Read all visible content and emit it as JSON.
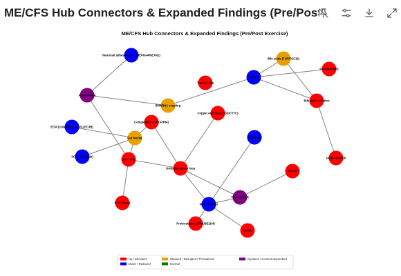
{
  "header": {
    "title": "ME/CFS Hub Connectors & Expanded Findings (Pre/Post Exer...",
    "toolbar_icons": [
      "pin-off-icon",
      "settings-sliders-icon",
      "download-icon",
      "expand-icon"
    ]
  },
  "diagram": {
    "title": "ME/CFS Hub Connectors & Expanded Findings (Pre/Post Exercise)",
    "colors": {
      "up": "#ff0000",
      "down": "#0000ff",
      "strained": "#e8a000",
      "normal": "#007a00",
      "dynamic": "#800080",
      "edge": "#808080"
    },
    "nodes": [
      {
        "id": "neuronal",
        "label": "Neuronal adhesion (CNTN/EPHA4/NEXN1)",
        "state": "down"
      },
      {
        "id": "bile_acids",
        "label": "Bile acids (FXR/FGF19)",
        "state": "strained"
      },
      {
        "id": "ppp",
        "label": "PPP (NADPH)",
        "state": "up"
      },
      {
        "id": "ampk",
        "label": "AMPK",
        "state": "down"
      },
      {
        "id": "tissue",
        "label": "Tissue hubs",
        "state": "up"
      },
      {
        "id": "adrenal",
        "label": "Adrenal/HPA",
        "state": "dynamic"
      },
      {
        "id": "bile_oxid",
        "label": "Bile acid oxidation",
        "state": "up"
      },
      {
        "id": "bh4",
        "label": "BH4/BH2 coupling",
        "state": "strained"
      },
      {
        "id": "copper",
        "label": "Copper enzymes (SOD/CYTC)",
        "state": "up"
      },
      {
        "id": "complement",
        "label": "Complement (C3/CFHR4)",
        "state": "up"
      },
      {
        "id": "ecm",
        "label": "ECM (COMP/COL6A1/CLEC3B)",
        "state": "down"
      },
      {
        "id": "gut",
        "label": "Gut barrier",
        "state": "strained"
      },
      {
        "id": "autophagy",
        "label": "Autophagy",
        "state": "down"
      },
      {
        "id": "scfa",
        "label": "SCFA (butyrate)",
        "state": "down"
      },
      {
        "id": "nat",
        "label": "NAT (P4)",
        "state": "up"
      },
      {
        "id": "glutamate",
        "label": "Glutamate/Gln",
        "state": "up"
      },
      {
        "id": "oxidative",
        "label": "Oxidative stress loop",
        "state": "up"
      },
      {
        "id": "hsp",
        "label": "HSP70",
        "state": "up"
      },
      {
        "id": "thymus",
        "label": "Thymus/TCR",
        "state": "dynamic"
      },
      {
        "id": "pyr",
        "label": "PYR kinase",
        "state": "up"
      },
      {
        "id": "mito",
        "label": "Mito complex",
        "state": "down"
      },
      {
        "id": "proteostasis",
        "label": "Proteostasis (UPP/UBE2D4)",
        "state": "up"
      },
      {
        "id": "ornith",
        "label": "Ornith",
        "state": "up"
      }
    ],
    "edges": [
      [
        "neuronal",
        "adrenal"
      ],
      [
        "adrenal",
        "bh4"
      ],
      [
        "adrenal",
        "nat"
      ],
      [
        "bh4",
        "ampk"
      ],
      [
        "ampk",
        "bile_acids"
      ],
      [
        "ampk",
        "ppp"
      ],
      [
        "ampk",
        "bile_oxid"
      ],
      [
        "bile_acids",
        "bile_oxid"
      ],
      [
        "bile_oxid",
        "glutamate"
      ],
      [
        "ecm",
        "gut"
      ],
      [
        "gut",
        "complement"
      ],
      [
        "gut",
        "scfa"
      ],
      [
        "gut",
        "nat"
      ],
      [
        "complement",
        "oxidative"
      ],
      [
        "copper",
        "oxidative"
      ],
      [
        "nat",
        "oxidative"
      ],
      [
        "nat",
        "pyr"
      ],
      [
        "oxidative",
        "mito"
      ],
      [
        "oxidative",
        "thymus"
      ],
      [
        "autophagy",
        "mito"
      ],
      [
        "hsp",
        "thymus"
      ],
      [
        "mito",
        "thymus"
      ],
      [
        "mito",
        "proteostasis"
      ],
      [
        "mito",
        "ornith"
      ]
    ],
    "legend": [
      {
        "label": "Up / Elevated",
        "state": "up"
      },
      {
        "label": "Down / Reduced",
        "state": "down"
      },
      {
        "label": "Strained / Disrupted / Threatened",
        "state": "strained"
      },
      {
        "label": "Normal",
        "state": "normal"
      },
      {
        "label": "Dynamic / Context-dependent",
        "state": "dynamic"
      }
    ]
  }
}
